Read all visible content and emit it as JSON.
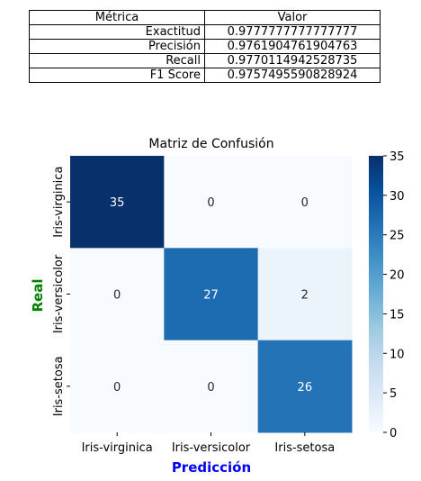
{
  "metrics_table": {
    "headers": [
      "Métrica",
      "Valor"
    ],
    "rows": [
      {
        "metric": "Exactitud",
        "value": "0.9777777777777777"
      },
      {
        "metric": "Precisión",
        "value": "0.9761904761904763"
      },
      {
        "metric": "Recall",
        "value": "0.9770114942528735"
      },
      {
        "metric": "F1 Score",
        "value": "0.9757495590828924"
      }
    ]
  },
  "chart_data": {
    "type": "heatmap",
    "title": "Matriz de Confusión",
    "xlabel": "Predicción",
    "ylabel": "Real",
    "xlabel_color": "#0000ff",
    "ylabel_color": "#008000",
    "x_categories": [
      "Iris-virginica",
      "Iris-versicolor",
      "Iris-setosa"
    ],
    "y_categories": [
      "Iris-virginica",
      "Iris-versicolor",
      "Iris-setosa"
    ],
    "values": [
      [
        35,
        0,
        0
      ],
      [
        0,
        27,
        2
      ],
      [
        0,
        0,
        26
      ]
    ],
    "colormap": "Blues",
    "colorbar": {
      "min": 0,
      "max": 35,
      "ticks": [
        "0",
        "5",
        "10",
        "15",
        "20",
        "25",
        "30",
        "35"
      ]
    }
  }
}
